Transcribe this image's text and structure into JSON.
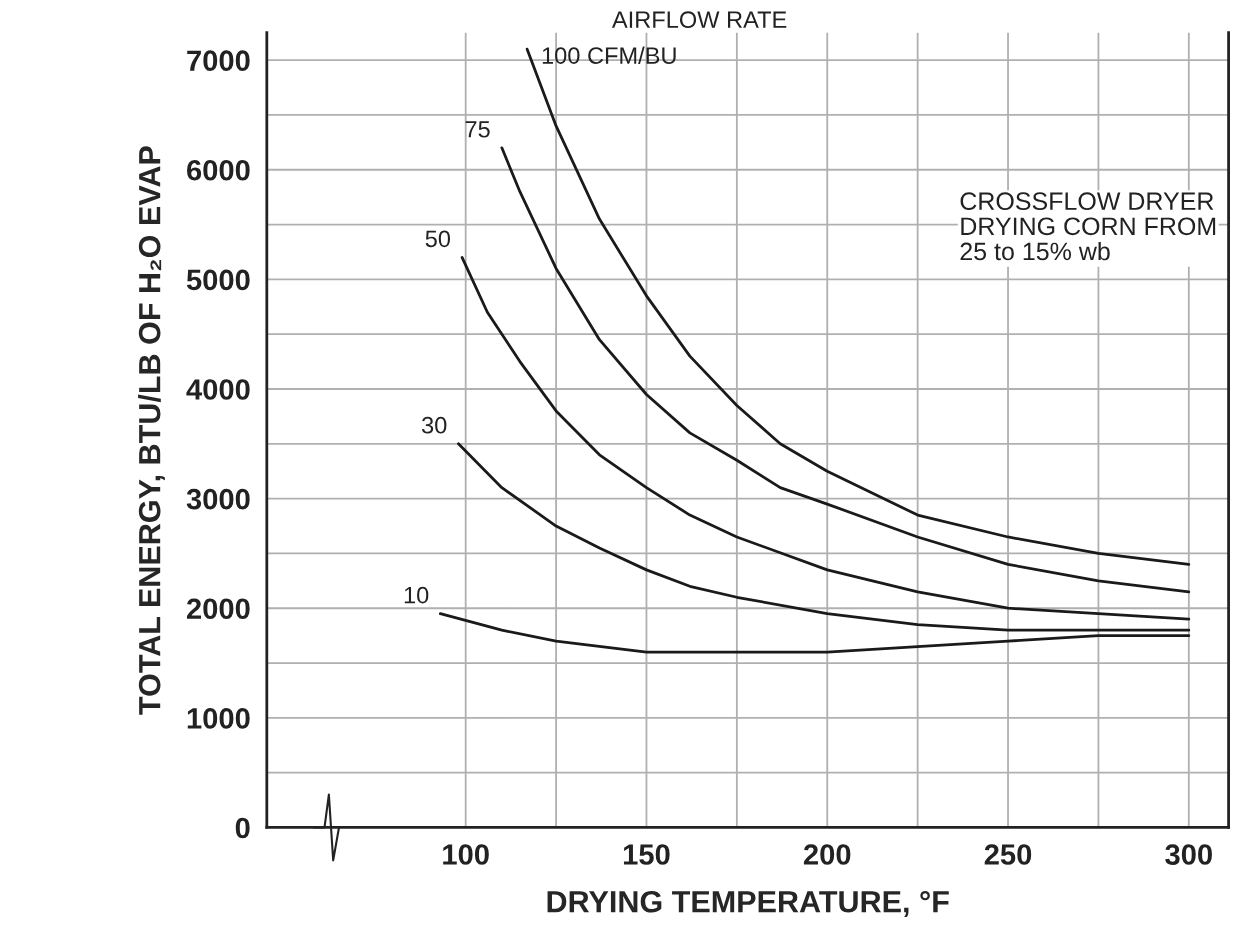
{
  "chart_data": {
    "type": "line",
    "xlabel": "DRYING TEMPERATURE, °F",
    "ylabel": "TOTAL ENERGY, BTU/LB OF H₂O EVAP",
    "annotations": [
      "AIRFLOW RATE",
      "CROSSFLOW DRYER\nDRYING CORN FROM\n25 to 15% wb"
    ],
    "series": [
      {
        "name": "100 CFM/BU",
        "color": "#1a1a1a",
        "x": [
          117,
          125,
          137,
          150,
          162,
          175,
          187,
          200,
          225,
          250,
          275,
          300
        ],
        "values": [
          7100,
          6400,
          5550,
          4850,
          4300,
          3850,
          3500,
          3250,
          2850,
          2650,
          2500,
          2400
        ]
      },
      {
        "name": "75",
        "color": "#1a1a1a",
        "x": [
          110,
          115,
          125,
          137,
          150,
          162,
          175,
          187,
          200,
          225,
          250,
          275,
          300
        ],
        "values": [
          6200,
          5800,
          5100,
          4450,
          3950,
          3600,
          3350,
          3100,
          2950,
          2650,
          2400,
          2250,
          2150
        ]
      },
      {
        "name": "50",
        "color": "#1a1a1a",
        "x": [
          99,
          106,
          115,
          125,
          137,
          150,
          162,
          175,
          200,
          225,
          250,
          275,
          300
        ],
        "values": [
          5200,
          4700,
          4250,
          3800,
          3400,
          3100,
          2850,
          2650,
          2350,
          2150,
          2000,
          1950,
          1900
        ]
      },
      {
        "name": "30",
        "color": "#1a1a1a",
        "x": [
          98,
          110,
          125,
          137,
          150,
          162,
          175,
          200,
          225,
          250,
          275,
          300
        ],
        "values": [
          3500,
          3100,
          2750,
          2550,
          2350,
          2200,
          2100,
          1950,
          1850,
          1800,
          1800,
          1800
        ]
      },
      {
        "name": "10",
        "color": "#1a1a1a",
        "x": [
          93,
          110,
          125,
          150,
          175,
          200,
          225,
          250,
          275,
          300
        ],
        "values": [
          1950,
          1800,
          1700,
          1600,
          1600,
          1600,
          1650,
          1700,
          1750,
          1750
        ]
      }
    ],
    "xlim": [
      45,
      311
    ],
    "ylim": [
      0,
      7250
    ],
    "xticks": [
      100,
      {
        "value": 125,
        "label": null
      },
      150,
      {
        "value": 175,
        "label": null
      },
      200,
      {
        "value": 225,
        "label": null
      },
      250,
      {
        "value": 275,
        "label": null
      },
      300
    ],
    "yticks": [
      0,
      {
        "value": 500,
        "label": null
      },
      1000,
      {
        "value": 1500,
        "label": null
      },
      2000,
      {
        "value": 2500,
        "label": null
      },
      3000,
      {
        "value": 3500,
        "label": null
      },
      4000,
      {
        "value": 4500,
        "label": null
      },
      5000,
      {
        "value": 5500,
        "label": null
      },
      6000,
      {
        "value": 6500,
        "label": null
      },
      7000
    ],
    "grid": true,
    "line_style": "solid",
    "marker": "none",
    "legend": false
  }
}
